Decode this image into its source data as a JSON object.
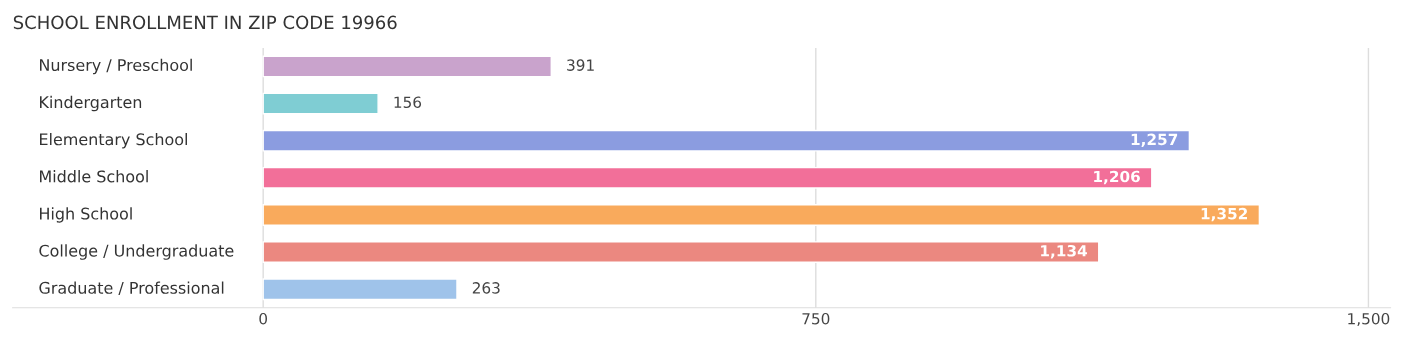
{
  "chart_data": {
    "type": "bar",
    "orientation": "horizontal",
    "title": "SCHOOL ENROLLMENT IN ZIP CODE 19966",
    "categories": [
      "Nursery / Preschool",
      "Kindergarten",
      "Elementary School",
      "Middle School",
      "High School",
      "College / Undergraduate",
      "Graduate / Professional"
    ],
    "values": [
      391,
      156,
      1257,
      1206,
      1352,
      1134,
      263
    ],
    "colors": [
      "#c9a3cc",
      "#7fcdd3",
      "#8b9ce0",
      "#f26f99",
      "#f9aa5c",
      "#eb8880",
      "#9fc3ea"
    ],
    "value_labels": [
      "391",
      "156",
      "1,257",
      "1,206",
      "1,352",
      "1,134",
      "263"
    ],
    "xlim": [
      -340,
      1530
    ],
    "xticks": [
      0,
      {
        "value": 750,
        "label": "750"
      },
      {
        "value": 1500,
        "label": "1,500"
      }
    ],
    "grid": "x"
  }
}
